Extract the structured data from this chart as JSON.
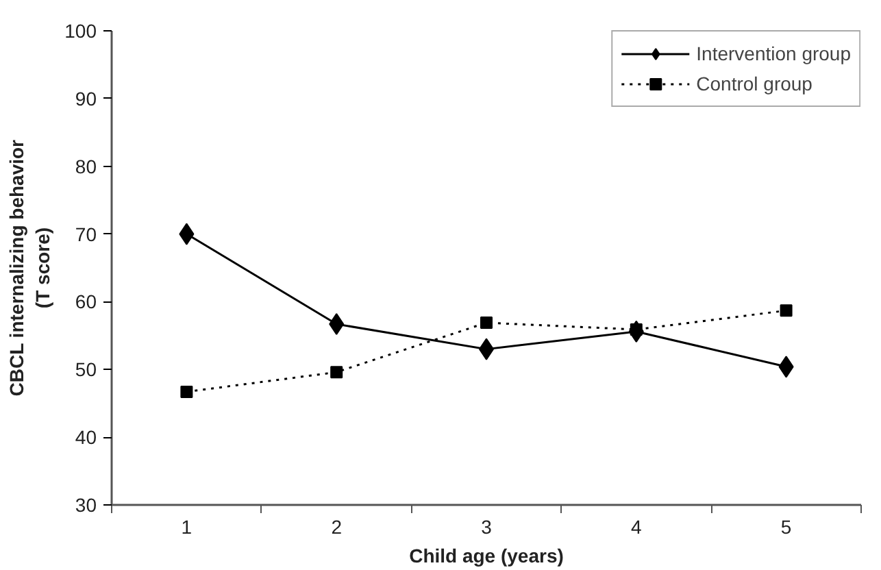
{
  "chart_data": {
    "type": "line",
    "xlabel": "Child age (years)",
    "ylabel": "CBCL internalizing behavior\n(T score)",
    "categories": [
      "1",
      "2",
      "3",
      "4",
      "5"
    ],
    "ylim": [
      30,
      100
    ],
    "yticks": [
      30,
      40,
      50,
      60,
      70,
      80,
      90,
      100
    ],
    "grid": false,
    "legend": "top right",
    "series": [
      {
        "name": "Intervention group",
        "color": "#000000",
        "marker": "diamond",
        "line_style": "solid",
        "values": [
          70.0,
          56.7,
          53.0,
          55.6,
          50.4
        ]
      },
      {
        "name": "Control group",
        "color": "#000000",
        "marker": "square",
        "line_style": "dotted",
        "values": [
          46.7,
          49.6,
          56.9,
          55.9,
          58.7
        ]
      }
    ]
  }
}
